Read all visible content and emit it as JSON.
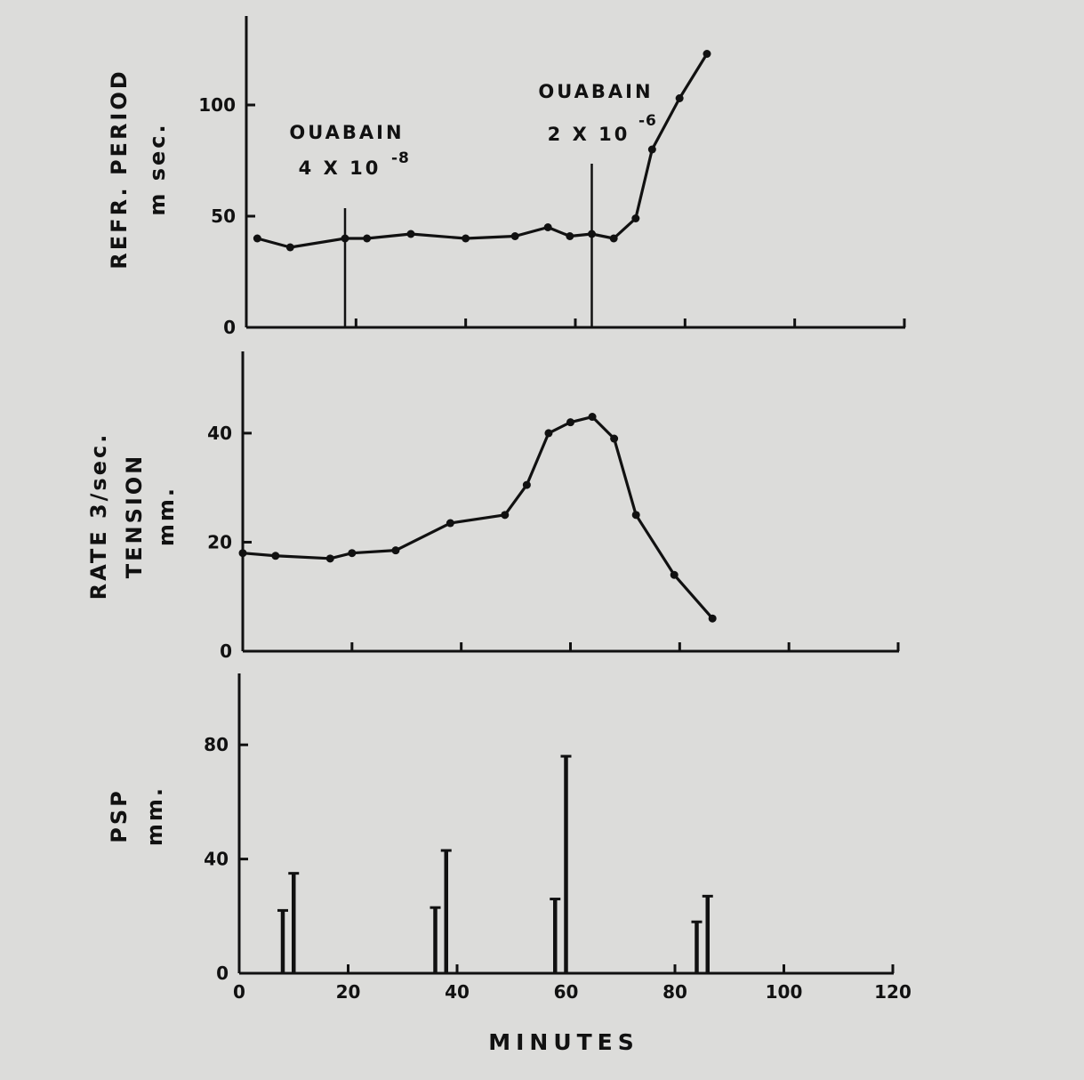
{
  "chart_data": [
    {
      "type": "line",
      "ylabel_lines": [
        "REFR. PERIOD",
        "m sec."
      ],
      "xlim": [
        0,
        120
      ],
      "ylim": [
        0,
        140
      ],
      "yticks": [
        0,
        50,
        100
      ],
      "xticks": [
        0,
        20,
        40,
        60,
        80,
        100,
        120
      ],
      "series": [
        {
          "x": [
            2,
            8,
            18,
            22,
            30,
            40,
            49,
            55,
            59,
            63,
            67,
            71,
            74,
            79,
            84
          ],
          "y": [
            40,
            36,
            40,
            40,
            42,
            40,
            41,
            45,
            41,
            42,
            40,
            49,
            80,
            103,
            123
          ]
        }
      ],
      "annotations": [
        {
          "lines": [
            "OUABAIN",
            "4 X 10",
            "-8"
          ],
          "x": 18
        },
        {
          "lines": [
            "OUABAIN",
            "2 X 10",
            "-6"
          ],
          "x": 63
        }
      ]
    },
    {
      "type": "line",
      "ylabel_lines": [
        "RATE  3/sec.",
        "TENSION",
        "mm."
      ],
      "xlim": [
        0,
        120
      ],
      "ylim": [
        0,
        55
      ],
      "yticks": [
        0,
        20,
        40
      ],
      "xticks": [
        0,
        20,
        40,
        60,
        80,
        100,
        120
      ],
      "series": [
        {
          "x": [
            0,
            6,
            16,
            20,
            28,
            38,
            48,
            52,
            56,
            60,
            64,
            68,
            72,
            79,
            86
          ],
          "y": [
            18,
            17.5,
            17,
            18,
            18.5,
            23.5,
            25,
            30.5,
            40,
            42,
            43,
            39,
            25,
            14,
            6
          ]
        }
      ]
    },
    {
      "type": "bar",
      "ylabel_lines": [
        "PSP",
        "mm."
      ],
      "xlabel": "MINUTES",
      "xlim": [
        0,
        120
      ],
      "ylim": [
        0,
        105
      ],
      "yticks": [
        0,
        40,
        80
      ],
      "xticks": [
        0,
        20,
        40,
        60,
        80,
        100,
        120
      ],
      "tick_labels": [
        "0",
        "20",
        "40",
        "60",
        "80",
        "100",
        "120"
      ],
      "bars": {
        "x": [
          8,
          10,
          36,
          38,
          58,
          60,
          84,
          86
        ],
        "y": [
          22,
          35,
          23,
          43,
          26,
          76,
          18,
          27
        ]
      }
    }
  ]
}
